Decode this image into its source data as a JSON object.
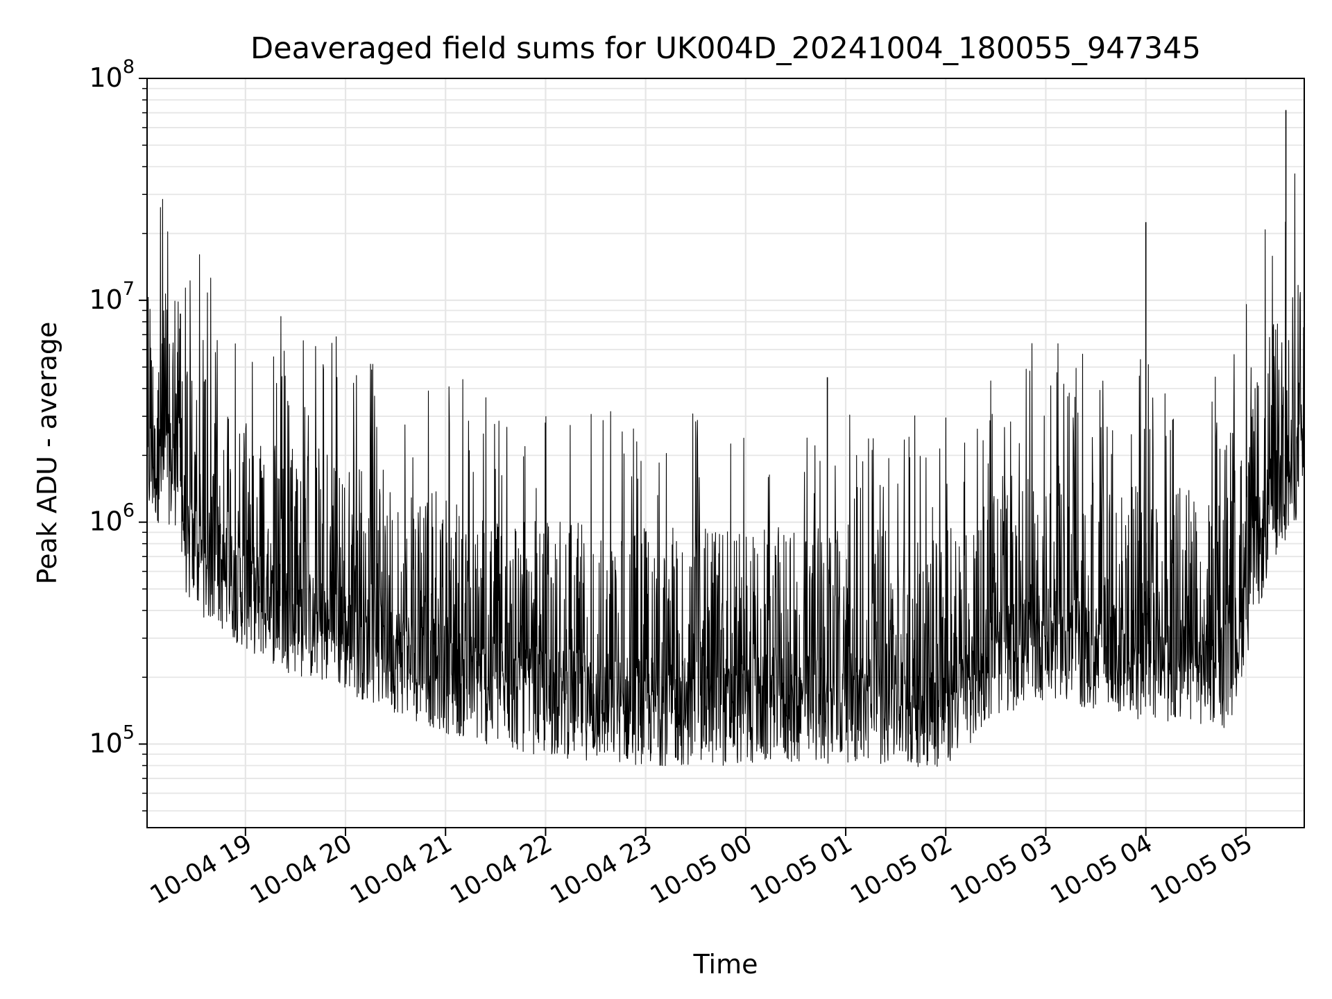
{
  "chart_data": {
    "type": "line",
    "title": "Deaveraged field sums for UK004D_20241004_180055_947345",
    "xlabel": "Time",
    "ylabel": "Peak ADU - average",
    "yscale": "log",
    "ylim": [
      42000,
      100000000
    ],
    "xlim": [
      "2024-10-04 18:01",
      "2024-10-05 05:35"
    ],
    "grid": true,
    "legend": "none",
    "line_color": "#000000",
    "grid_color": "#e6e6e6",
    "x_ticks": [
      {
        "t": "2024-10-04 19:00",
        "label": "10-04 19"
      },
      {
        "t": "2024-10-04 20:00",
        "label": "10-04 20"
      },
      {
        "t": "2024-10-04 21:00",
        "label": "10-04 21"
      },
      {
        "t": "2024-10-04 22:00",
        "label": "10-04 22"
      },
      {
        "t": "2024-10-04 23:00",
        "label": "10-04 23"
      },
      {
        "t": "2024-10-05 00:00",
        "label": "10-05 00"
      },
      {
        "t": "2024-10-05 01:00",
        "label": "10-05 01"
      },
      {
        "t": "2024-10-05 02:00",
        "label": "10-05 02"
      },
      {
        "t": "2024-10-05 03:00",
        "label": "10-05 03"
      },
      {
        "t": "2024-10-05 04:00",
        "label": "10-05 04"
      },
      {
        "t": "2024-10-05 05:00",
        "label": "10-05 05"
      }
    ],
    "y_ticks": [
      {
        "value": 100000,
        "base": "10",
        "exp": "5"
      },
      {
        "value": 1000000,
        "base": "10",
        "exp": "6"
      },
      {
        "value": 10000000,
        "base": "10",
        "exp": "7"
      },
      {
        "value": 100000000,
        "base": "10",
        "exp": "8"
      }
    ],
    "baseline": [
      {
        "t": "2024-10-04 18:01",
        "v": 1900000
      },
      {
        "t": "2024-10-04 18:20",
        "v": 1800000
      },
      {
        "t": "2024-10-04 18:25",
        "v": 800000
      },
      {
        "t": "2024-10-04 19:00",
        "v": 500000
      },
      {
        "t": "2024-10-04 19:30",
        "v": 380000
      },
      {
        "t": "2024-10-04 20:00",
        "v": 320000
      },
      {
        "t": "2024-10-04 20:30",
        "v": 260000
      },
      {
        "t": "2024-10-04 21:00",
        "v": 210000
      },
      {
        "t": "2024-10-04 21:30",
        "v": 180000
      },
      {
        "t": "2024-10-04 22:00",
        "v": 165000
      },
      {
        "t": "2024-10-04 23:00",
        "v": 150000
      },
      {
        "t": "2024-10-05 00:00",
        "v": 150000
      },
      {
        "t": "2024-10-05 01:00",
        "v": 155000
      },
      {
        "t": "2024-10-05 02:00",
        "v": 145000
      },
      {
        "t": "2024-10-05 02:30",
        "v": 250000
      },
      {
        "t": "2024-10-05 03:00",
        "v": 300000
      },
      {
        "t": "2024-10-05 03:30",
        "v": 260000
      },
      {
        "t": "2024-10-05 04:00",
        "v": 240000
      },
      {
        "t": "2024-10-05 04:50",
        "v": 220000
      },
      {
        "t": "2024-10-05 05:00",
        "v": 450000
      },
      {
        "t": "2024-10-05 05:15",
        "v": 1200000
      },
      {
        "t": "2024-10-05 05:35",
        "v": 2200000
      }
    ],
    "spikes": [
      {
        "t": "2024-10-04 18:21",
        "v": 8700000
      },
      {
        "t": "2024-10-04 18:36",
        "v": 4400000
      },
      {
        "t": "2024-10-05 00:49",
        "v": 4500000
      },
      {
        "t": "2024-10-05 04:00",
        "v": 22500000
      },
      {
        "t": "2024-10-05 05:24",
        "v": 72000000
      }
    ]
  }
}
